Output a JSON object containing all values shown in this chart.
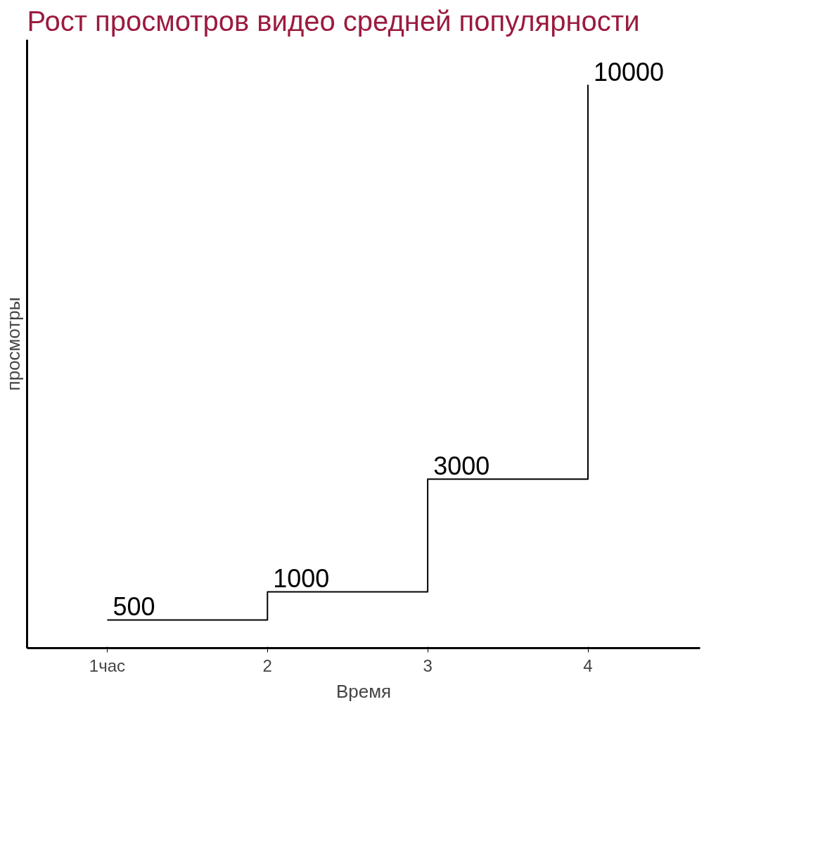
{
  "chart_data": {
    "type": "step",
    "title": "Рост просмотров видео средней популярности",
    "xlabel": "Время",
    "ylabel": "просмотры",
    "categories": [
      "1час",
      "2",
      "3",
      "4"
    ],
    "series": [
      {
        "color": "#000000",
        "values": [
          500,
          1000,
          3000,
          10000
        ]
      }
    ],
    "data_labels": true,
    "tick_labels": "x"
  }
}
